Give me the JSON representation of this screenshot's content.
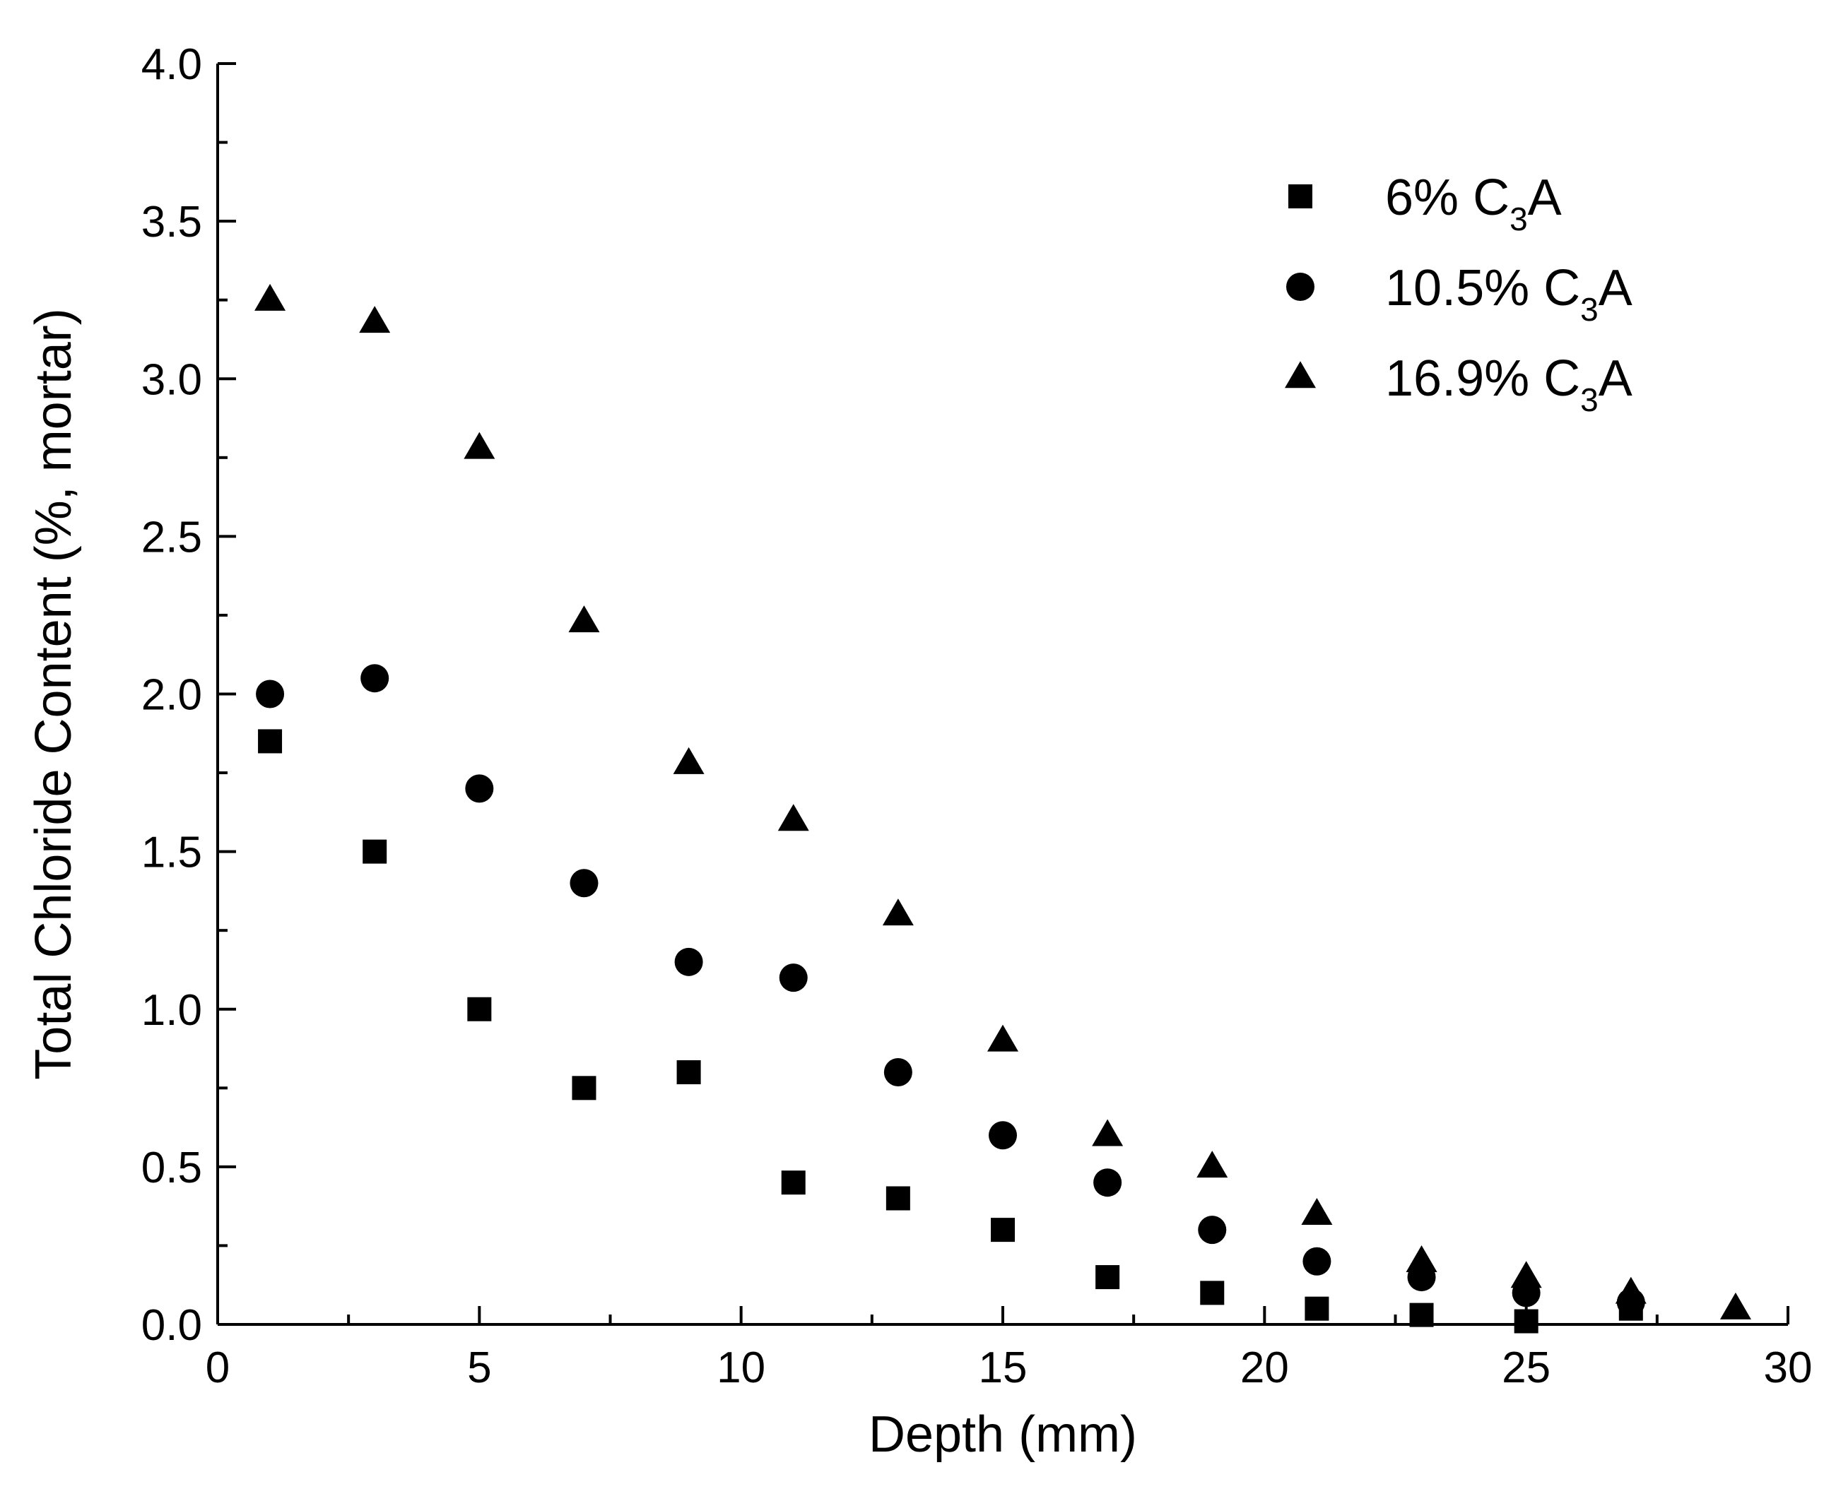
{
  "chart_data": {
    "type": "scatter",
    "title": "",
    "xlabel": "Depth (mm)",
    "ylabel": "Total Chloride Content (%, mortar)",
    "xlim": [
      0,
      30
    ],
    "ylim": [
      0,
      4.0
    ],
    "xticks": [
      0,
      5,
      10,
      15,
      20,
      25,
      30
    ],
    "xtick_labels": [
      "0",
      "5",
      "10",
      "15",
      "20",
      "25",
      "30"
    ],
    "yticks": [
      0,
      0.5,
      1.0,
      1.5,
      2.0,
      2.5,
      3.0,
      3.5,
      4.0
    ],
    "ytick_labels": [
      "0.0",
      "0.5",
      "1.0",
      "1.5",
      "2.0",
      "2.5",
      "3.0",
      "3.5",
      "4.0"
    ],
    "grid": false,
    "legend_position": "top-right",
    "series": [
      {
        "name": "6% C3A",
        "label_main": "6% C",
        "label_sub": "3",
        "label_tail": "A",
        "marker": "square",
        "x": [
          1,
          3,
          5,
          7,
          9,
          11,
          13,
          15,
          17,
          19,
          21,
          23,
          25,
          27
        ],
        "y": [
          1.85,
          1.5,
          1.0,
          0.75,
          0.8,
          0.45,
          0.4,
          0.3,
          0.15,
          0.1,
          0.05,
          0.03,
          0.01,
          0.05
        ]
      },
      {
        "name": "10.5% C3A",
        "label_main": "10.5% C",
        "label_sub": "3",
        "label_tail": "A",
        "marker": "circle",
        "x": [
          1,
          3,
          5,
          7,
          9,
          11,
          13,
          15,
          17,
          19,
          21,
          23,
          25,
          27
        ],
        "y": [
          2.0,
          2.05,
          1.7,
          1.4,
          1.15,
          1.1,
          0.8,
          0.6,
          0.45,
          0.3,
          0.2,
          0.15,
          0.1,
          0.07
        ]
      },
      {
        "name": "16.9% C3A",
        "label_main": "16.9% C",
        "label_sub": "3",
        "label_tail": "A",
        "marker": "triangle",
        "x": [
          1,
          3,
          5,
          7,
          9,
          11,
          13,
          15,
          17,
          19,
          21,
          23,
          25,
          27,
          29
        ],
        "y": [
          3.25,
          3.18,
          2.78,
          2.23,
          1.78,
          1.6,
          1.3,
          0.9,
          0.6,
          0.5,
          0.35,
          0.2,
          0.15,
          0.1,
          0.05
        ]
      }
    ],
    "colors": {
      "marker": "#000000",
      "axis": "#000000"
    }
  }
}
